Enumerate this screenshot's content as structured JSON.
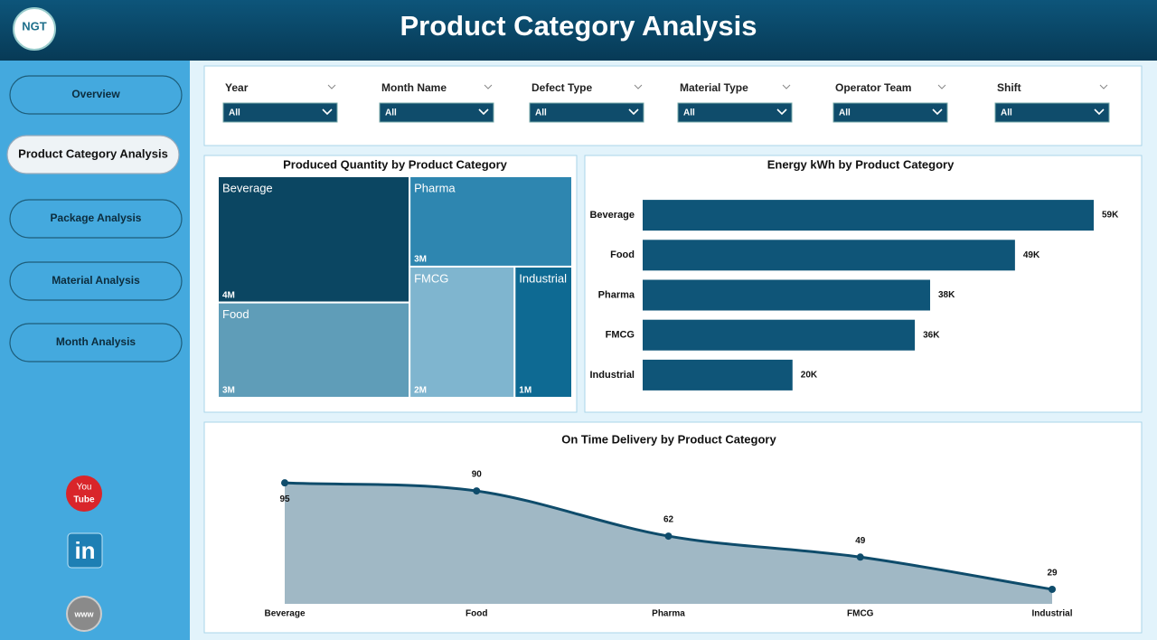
{
  "header": {
    "title": "Product Category Analysis",
    "logo": "NGT"
  },
  "nav": [
    "Overview",
    "Product Category Analysis",
    "Package Analysis",
    "Material Analysis",
    "Month Analysis"
  ],
  "filters": [
    {
      "label": "Year",
      "value": "All"
    },
    {
      "label": "Month Name",
      "value": "All"
    },
    {
      "label": "Defect Type",
      "value": "All"
    },
    {
      "label": "Material Type",
      "value": "All"
    },
    {
      "label": "Operator Team",
      "value": "All"
    },
    {
      "label": "Shift",
      "value": "All"
    }
  ],
  "social": {
    "youtube": [
      "You",
      "Tube"
    ],
    "linkedin": "in",
    "web": "www"
  },
  "chart_data": [
    {
      "type": "treemap",
      "title": "Produced Quantity by Product Category",
      "categories": [
        "Beverage",
        "Food",
        "Pharma",
        "FMCG",
        "Industrial"
      ],
      "values": [
        4200000,
        3170000,
        2550000,
        2390000,
        1310000
      ],
      "value_labels": [
        "4M",
        "3M",
        "3M",
        "2M",
        "1M"
      ],
      "colors": [
        "#0b4662",
        "#5f9db8",
        "#2e86b0",
        "#7fb5cf",
        "#0e6a93"
      ]
    },
    {
      "type": "hbar",
      "title": "Energy kWh by Product Category",
      "categories": [
        "Beverage",
        "Food",
        "Pharma",
        "FMCG",
        "Industrial"
      ],
      "values": [
        59000,
        48700,
        37600,
        35600,
        19600
      ],
      "value_labels": [
        "59K",
        "49K",
        "38K",
        "36K",
        "20K"
      ],
      "color": "#0f5578"
    },
    {
      "type": "area",
      "title": "On Time Delivery by Product Category",
      "categories": [
        "Beverage",
        "Food",
        "Pharma",
        "FMCG",
        "Industrial"
      ],
      "values": [
        95,
        90,
        62,
        49,
        29
      ],
      "color": "#0f4c6b",
      "fill": "#a0b8c5"
    }
  ]
}
